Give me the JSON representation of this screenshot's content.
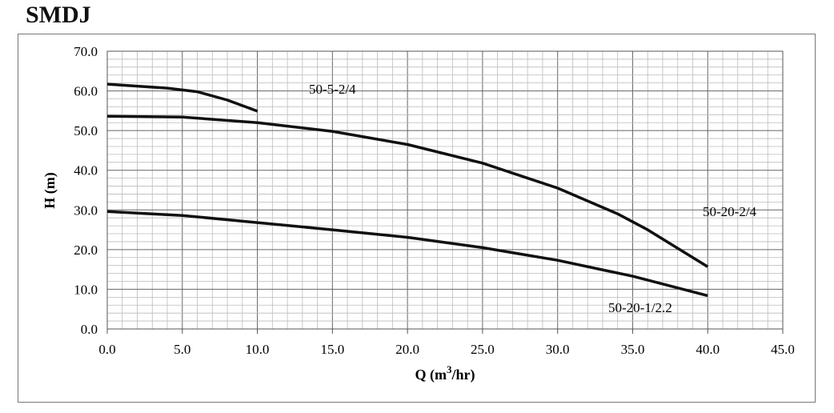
{
  "chart_data": {
    "type": "line",
    "title": "SMDJ",
    "xlabel": "Q (m3/hr)",
    "ylabel": "H (m)",
    "xlim": [
      0,
      45
    ],
    "ylim": [
      0,
      70
    ],
    "xticks": [
      "0.0",
      "5.0",
      "10.0",
      "15.0",
      "20.0",
      "25.0",
      "30.0",
      "35.0",
      "40.0",
      "45.0"
    ],
    "yticks": [
      "0.0",
      "10.0",
      "20.0",
      "30.0",
      "40.0",
      "50.0",
      "60.0",
      "70.0"
    ],
    "grid": true,
    "line_color": "#111111",
    "series": [
      {
        "name": "50-5-2/4",
        "x": [
          0,
          2,
          4,
          6,
          8,
          10
        ],
        "y": [
          61.7,
          61.2,
          60.7,
          59.8,
          57.7,
          54.9
        ]
      },
      {
        "name": "50-20-2/4",
        "x": [
          0,
          5,
          10,
          15,
          20,
          25,
          30,
          34,
          36,
          40
        ],
        "y": [
          53.6,
          53.4,
          52.0,
          49.8,
          46.5,
          41.8,
          35.5,
          29.0,
          25.0,
          15.7
        ]
      },
      {
        "name": "50-20-1/2.2",
        "x": [
          0,
          5,
          10,
          15,
          20,
          25,
          30,
          35,
          40
        ],
        "y": [
          29.6,
          28.6,
          26.8,
          25.0,
          23.1,
          20.5,
          17.3,
          13.3,
          8.4
        ]
      }
    ]
  }
}
